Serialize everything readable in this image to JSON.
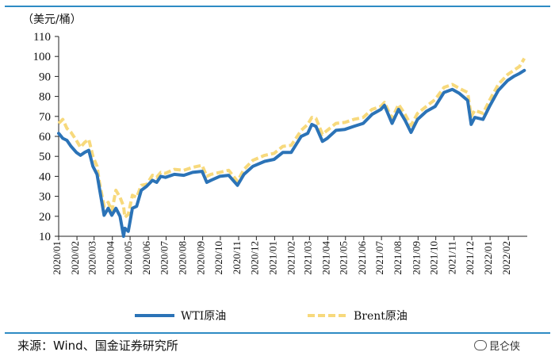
{
  "chart_data": {
    "type": "line",
    "unit_label": "（美元/桶）",
    "ylim": [
      10,
      110
    ],
    "yticks": [
      10,
      20,
      30,
      40,
      50,
      60,
      70,
      80,
      90,
      100,
      110
    ],
    "categories": [
      "2020/01",
      "2020/02",
      "2020/03",
      "2020/04",
      "2020/05",
      "2020/06",
      "2020/07",
      "2020/08",
      "2020/09",
      "2020/10",
      "2020/11",
      "2020/12",
      "2021/01",
      "2021/02",
      "2021/03",
      "2021/04",
      "2021/05",
      "2021/06",
      "2021/07",
      "2021/08",
      "2021/09",
      "2021/10",
      "2021/11",
      "2021/12",
      "2022/01",
      "2022/02"
    ],
    "legend_position": "bottom",
    "grid": false,
    "series": [
      {
        "name": "WTI原油",
        "color": "#2b73b7",
        "style": "solid",
        "points": [
          [
            "2020-01-01",
            61.5
          ],
          [
            "2020-01-08",
            59
          ],
          [
            "2020-01-15",
            58
          ],
          [
            "2020-01-22",
            55
          ],
          [
            "2020-01-31",
            52
          ],
          [
            "2020-02-07",
            50.5
          ],
          [
            "2020-02-14",
            52
          ],
          [
            "2020-02-21",
            53
          ],
          [
            "2020-02-28",
            45
          ],
          [
            "2020-03-06",
            41
          ],
          [
            "2020-03-10",
            34
          ],
          [
            "2020-03-18",
            20.5
          ],
          [
            "2020-03-25",
            24
          ],
          [
            "2020-03-31",
            20.5
          ],
          [
            "2020-04-07",
            24
          ],
          [
            "2020-04-14",
            20
          ],
          [
            "2020-04-20",
            10
          ],
          [
            "2020-04-22",
            14
          ],
          [
            "2020-04-28",
            12.5
          ],
          [
            "2020-05-05",
            24
          ],
          [
            "2020-05-12",
            25
          ],
          [
            "2020-05-20",
            33
          ],
          [
            "2020-05-29",
            35
          ],
          [
            "2020-06-08",
            38
          ],
          [
            "2020-06-15",
            37
          ],
          [
            "2020-06-22",
            40
          ],
          [
            "2020-06-30",
            39.5
          ],
          [
            "2020-07-15",
            41
          ],
          [
            "2020-07-31",
            40.5
          ],
          [
            "2020-08-15",
            42
          ],
          [
            "2020-08-31",
            42.5
          ],
          [
            "2020-09-08",
            37
          ],
          [
            "2020-09-15",
            38
          ],
          [
            "2020-09-30",
            40
          ],
          [
            "2020-10-15",
            40.5
          ],
          [
            "2020-10-30",
            35.5
          ],
          [
            "2020-11-10",
            41
          ],
          [
            "2020-11-25",
            45
          ],
          [
            "2020-12-15",
            47.5
          ],
          [
            "2020-12-31",
            48.5
          ],
          [
            "2021-01-15",
            52
          ],
          [
            "2021-01-29",
            52
          ],
          [
            "2021-02-15",
            60
          ],
          [
            "2021-02-26",
            61.5
          ],
          [
            "2021-03-05",
            66
          ],
          [
            "2021-03-12",
            65
          ],
          [
            "2021-03-23",
            57.5
          ],
          [
            "2021-03-31",
            59
          ],
          [
            "2021-04-15",
            63
          ],
          [
            "2021-04-30",
            63.5
          ],
          [
            "2021-05-15",
            65
          ],
          [
            "2021-05-31",
            66.5
          ],
          [
            "2021-06-15",
            71
          ],
          [
            "2021-06-30",
            73.5
          ],
          [
            "2021-07-06",
            75.5
          ],
          [
            "2021-07-19",
            66.5
          ],
          [
            "2021-07-30",
            73.5
          ],
          [
            "2021-08-10",
            68
          ],
          [
            "2021-08-20",
            62
          ],
          [
            "2021-08-31",
            68.5
          ],
          [
            "2021-09-15",
            72.5
          ],
          [
            "2021-09-30",
            75
          ],
          [
            "2021-10-15",
            82
          ],
          [
            "2021-10-29",
            83.5
          ],
          [
            "2021-11-10",
            81.5
          ],
          [
            "2021-11-24",
            78
          ],
          [
            "2021-11-30",
            66
          ],
          [
            "2021-12-06",
            69.5
          ],
          [
            "2021-12-20",
            68.5
          ],
          [
            "2021-12-31",
            75
          ],
          [
            "2022-01-15",
            83
          ],
          [
            "2022-01-31",
            88
          ],
          [
            "2022-02-10",
            90
          ],
          [
            "2022-02-20",
            91.5
          ],
          [
            "2022-02-28",
            93
          ]
        ]
      },
      {
        "name": "Brent原油",
        "color": "#f7d97c",
        "style": "dashed",
        "points": [
          [
            "2020-01-01",
            66.5
          ],
          [
            "2020-01-08",
            68.5
          ],
          [
            "2020-01-15",
            64
          ],
          [
            "2020-01-22",
            62
          ],
          [
            "2020-01-31",
            58
          ],
          [
            "2020-02-07",
            54.5
          ],
          [
            "2020-02-14",
            57
          ],
          [
            "2020-02-21",
            58.5
          ],
          [
            "2020-02-28",
            50
          ],
          [
            "2020-03-06",
            45
          ],
          [
            "2020-03-10",
            37
          ],
          [
            "2020-03-18",
            25
          ],
          [
            "2020-03-25",
            27
          ],
          [
            "2020-03-31",
            22.5
          ],
          [
            "2020-04-07",
            33
          ],
          [
            "2020-04-14",
            29.5
          ],
          [
            "2020-04-20",
            25
          ],
          [
            "2020-04-22",
            19.5
          ],
          [
            "2020-04-28",
            21
          ],
          [
            "2020-05-05",
            30.5
          ],
          [
            "2020-05-12",
            29.5
          ],
          [
            "2020-05-20",
            35.5
          ],
          [
            "2020-05-29",
            36
          ],
          [
            "2020-06-08",
            40.5
          ],
          [
            "2020-06-15",
            39.5
          ],
          [
            "2020-06-22",
            42
          ],
          [
            "2020-06-30",
            41.5
          ],
          [
            "2020-07-15",
            43.5
          ],
          [
            "2020-07-31",
            43
          ],
          [
            "2020-08-15",
            44.5
          ],
          [
            "2020-08-31",
            45.5
          ],
          [
            "2020-09-08",
            40
          ],
          [
            "2020-09-15",
            41
          ],
          [
            "2020-09-30",
            42
          ],
          [
            "2020-10-15",
            43
          ],
          [
            "2020-10-30",
            37.5
          ],
          [
            "2020-11-10",
            43.5
          ],
          [
            "2020-11-25",
            48
          ],
          [
            "2020-12-15",
            50.5
          ],
          [
            "2020-12-31",
            51.5
          ],
          [
            "2021-01-15",
            55
          ],
          [
            "2021-01-29",
            55.5
          ],
          [
            "2021-02-15",
            63
          ],
          [
            "2021-02-26",
            66
          ],
          [
            "2021-03-05",
            69.5
          ],
          [
            "2021-03-12",
            69
          ],
          [
            "2021-03-23",
            61
          ],
          [
            "2021-03-31",
            63
          ],
          [
            "2021-04-15",
            66.5
          ],
          [
            "2021-04-30",
            67
          ],
          [
            "2021-05-15",
            68.5
          ],
          [
            "2021-05-31",
            69.5
          ],
          [
            "2021-06-15",
            73.5
          ],
          [
            "2021-06-30",
            75
          ],
          [
            "2021-07-06",
            77
          ],
          [
            "2021-07-19",
            69
          ],
          [
            "2021-07-30",
            76
          ],
          [
            "2021-08-10",
            71
          ],
          [
            "2021-08-20",
            65.5
          ],
          [
            "2021-08-31",
            71.5
          ],
          [
            "2021-09-15",
            75
          ],
          [
            "2021-09-30",
            78.5
          ],
          [
            "2021-10-15",
            84.5
          ],
          [
            "2021-10-29",
            86
          ],
          [
            "2021-11-10",
            84
          ],
          [
            "2021-11-24",
            82
          ],
          [
            "2021-11-30",
            70
          ],
          [
            "2021-12-06",
            73
          ],
          [
            "2021-12-20",
            71.5
          ],
          [
            "2021-12-31",
            78
          ],
          [
            "2022-01-15",
            86
          ],
          [
            "2022-01-31",
            91
          ],
          [
            "2022-02-10",
            93
          ],
          [
            "2022-02-20",
            95
          ],
          [
            "2022-02-28",
            99
          ]
        ]
      }
    ]
  },
  "source": "来源：Wind、国金证券研究所",
  "watermark": "昆仑侠"
}
